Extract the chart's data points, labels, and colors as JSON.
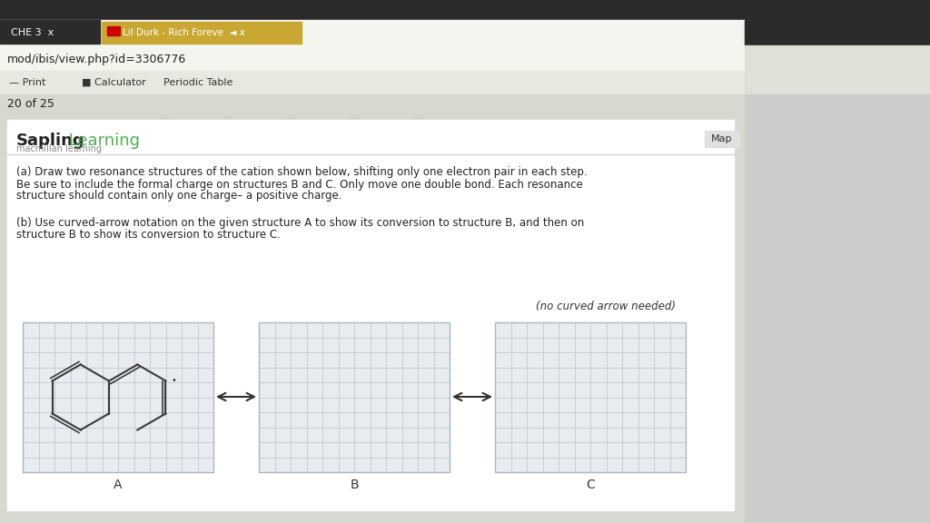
{
  "bg_top": "#2b2b2b",
  "bg_browser_bar": "#f5f5f0",
  "bg_tab_active": "#c8a832",
  "bg_toolbar": "#e8e8e0",
  "bg_content": "#d8d8d0",
  "bg_sapling": "#ffffff",
  "bg_grid_box": "#e8ecf0",
  "grid_line_color": "#b8c4cc",
  "tab_text": "CHE 3  x",
  "tab2_text": "Lil Durk - Rich Foreve  ◄ x",
  "url_text": "mod/ibis/view.php?id=3306776",
  "toolbar_items": [
    "Print",
    "Calculator",
    "Periodic Table"
  ],
  "progress_text": "20 of 25",
  "brand_text_sapling": "Sapling",
  "brand_text_learning": " Learning",
  "brand_sub": "macmillan learning",
  "map_btn": "Map",
  "question_a_line1": "(a) Draw two resonance structures of the cation shown below, shifting only one electron pair in each step.",
  "question_a_line2": "Be sure to include the formal charge on structures B and C. Only move one double bond. Each resonance",
  "question_a_line3": "structure should contain only one charge– a positive charge.",
  "question_b_line1": "(b) Use curved-arrow notation on the given structure A to show its conversion to structure B, and then on",
  "question_b_line2": "structure B to show its conversion to structure C.",
  "no_arrow_note": "(no curved arrow needed)",
  "labels": [
    "A",
    "B",
    "C"
  ],
  "arrow_symbol": "↔",
  "molecule_color": "#3a3a3a",
  "box_border_color": "#aab8c2",
  "title_color_sapling": "#2c2c2c",
  "title_color_learning": "#4caf50"
}
